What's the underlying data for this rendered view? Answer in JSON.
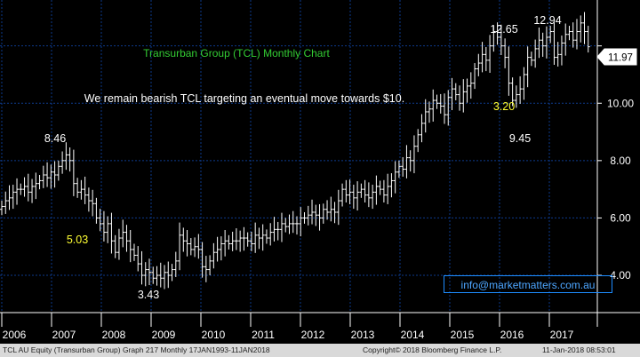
{
  "chart_data": {
    "type": "candlestick",
    "title": "Transurban Group (TCL) Monthly Chart",
    "annotation": "We remain bearish TCL targeting an eventual move towards $10.",
    "contact": "info@marketmatters.com.au",
    "last_price_label": "11.97",
    "x_years": [
      "2006",
      "2007",
      "2008",
      "2009",
      "2010",
      "2011",
      "2012",
      "2013",
      "2014",
      "2015",
      "2016",
      "2017"
    ],
    "y_ticks": [
      4.0,
      6.0,
      8.0,
      10.0,
      12.0
    ],
    "y_tick_labels": [
      "4.00",
      "6.00",
      "8.00",
      "10.00"
    ],
    "ylim": [
      2.7,
      13.6
    ],
    "grid": true,
    "price_labels": [
      {
        "text": "8.46",
        "x": 2007.0,
        "y": 8.46,
        "color": "#ffffff"
      },
      {
        "text": "5.03",
        "x": 2006.9,
        "y": 5.03,
        "color": "#ffff33"
      },
      {
        "text": "3.43",
        "x": 2009.0,
        "y": 3.43,
        "color": "#ffffff"
      },
      {
        "text": "12.65",
        "x": 2016.0,
        "y": 12.65,
        "color": "#ffffff"
      },
      {
        "text": "12.94",
        "x": 2016.85,
        "y": 12.94,
        "color": "#ffffff"
      },
      {
        "text": "3.20",
        "x": 2016.0,
        "y": 10.2,
        "color": "#ffff33"
      },
      {
        "text": "9.45",
        "x": 2016.2,
        "y": 9.45,
        "color": "#ffffff"
      }
    ],
    "closes": [
      6.4,
      6.6,
      6.7,
      6.9,
      7.0,
      7.0,
      7.1,
      6.9,
      7.1,
      7.2,
      7.3,
      7.5,
      7.4,
      7.6,
      7.5,
      7.8,
      8.0,
      8.2,
      8.0,
      7.2,
      6.9,
      7.0,
      6.8,
      6.6,
      6.5,
      6.0,
      5.8,
      5.5,
      5.8,
      5.2,
      4.8,
      5.3,
      5.5,
      5.2,
      4.9,
      4.7,
      4.4,
      4.0,
      4.2,
      4.1,
      3.9,
      4.0,
      3.9,
      4.1,
      4.0,
      4.2,
      4.5,
      5.4,
      5.2,
      5.1,
      4.9,
      5.0,
      4.9,
      4.3,
      4.2,
      4.5,
      4.8,
      4.9,
      5.1,
      5.2,
      5.1,
      5.2,
      5.2,
      5.3,
      5.3,
      5.2,
      5.1,
      5.4,
      5.3,
      5.4,
      5.3,
      5.5,
      5.6,
      5.6,
      5.8,
      5.7,
      5.8,
      5.8,
      5.8,
      6.0,
      6.0,
      6.1,
      6.2,
      6.1,
      6.0,
      6.3,
      6.2,
      6.3,
      6.2,
      6.6,
      7.0,
      6.8,
      6.9,
      6.7,
      6.9,
      7.0,
      6.8,
      6.7,
      6.9,
      7.1,
      7.0,
      6.8,
      7.1,
      7.3,
      7.6,
      7.8,
      7.7,
      8.1,
      8.0,
      8.5,
      8.9,
      9.3,
      9.7,
      9.8,
      10.1,
      10.0,
      9.9,
      9.6,
      10.2,
      10.5,
      10.3,
      10.0,
      10.4,
      10.6,
      10.7,
      11.2,
      11.4,
      11.7,
      11.5,
      12.0,
      12.5,
      12.3,
      12.0,
      11.6,
      10.7,
      10.1,
      10.3,
      10.5,
      11.0,
      11.6,
      11.5,
      11.9,
      12.2,
      12.0,
      12.3,
      12.5,
      11.6,
      11.7,
      12.1,
      12.4,
      12.5,
      12.2,
      12.5,
      12.8,
      12.5,
      11.97
    ]
  },
  "footer": {
    "left": "TCL AU Equity (Transurban Group) Graph 217  Monthly 17JAN1993-11JAN2018",
    "center": "Copyright© 2018 Bloomberg Finance L.P.",
    "right": "11-Jan-2018 08:53:01"
  },
  "colors": {
    "background": "#000000",
    "bars": "#ffffff",
    "grid": "#0d3a8c",
    "highlight_label": "#ffff33",
    "title": "#33cc33",
    "email": "#4da6ff"
  }
}
